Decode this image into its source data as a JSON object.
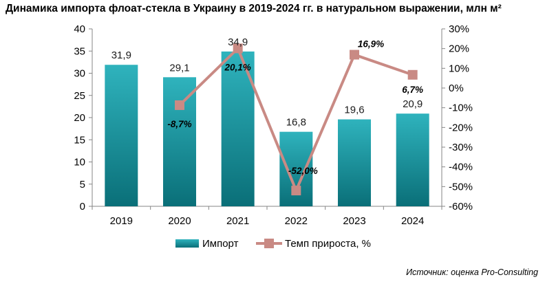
{
  "chart_data": {
    "type": "bar",
    "title": "Динамика импорта флоат-стекла в Украину в 2019-2024 гг. в натуральном выражении, млн м²",
    "categories": [
      "2019",
      "2020",
      "2021",
      "2022",
      "2023",
      "2024"
    ],
    "series": [
      {
        "name": "Импорт",
        "type": "bar",
        "axis": "left",
        "values": [
          31.9,
          29.1,
          34.9,
          16.8,
          19.6,
          20.9
        ],
        "labels": [
          "31,9",
          "29,1",
          "34,9",
          "16,8",
          "19,6",
          "20,9"
        ],
        "color": "#1a9aa6"
      },
      {
        "name": "Темп прироста, %",
        "type": "line",
        "axis": "right",
        "values": [
          null,
          -8.7,
          20.1,
          -52.0,
          16.9,
          6.7
        ],
        "labels": [
          "",
          "-8,7%",
          "20,1%",
          "-52,0%",
          "16,9%",
          "6,7%"
        ],
        "color": "#c98a84"
      }
    ],
    "y_left": {
      "min": 0,
      "max": 40,
      "step": 5,
      "ticks": [
        "0",
        "5",
        "10",
        "15",
        "20",
        "25",
        "30",
        "35",
        "40"
      ]
    },
    "y_right": {
      "min": -60,
      "max": 30,
      "step": 10,
      "ticks": [
        "-60%",
        "-50%",
        "-40%",
        "-30%",
        "-20%",
        "-10%",
        "0%",
        "10%",
        "20%",
        "30%"
      ]
    },
    "grid": false,
    "legend": "bottom"
  },
  "source": "Источник: оценка Pro-Consulting"
}
